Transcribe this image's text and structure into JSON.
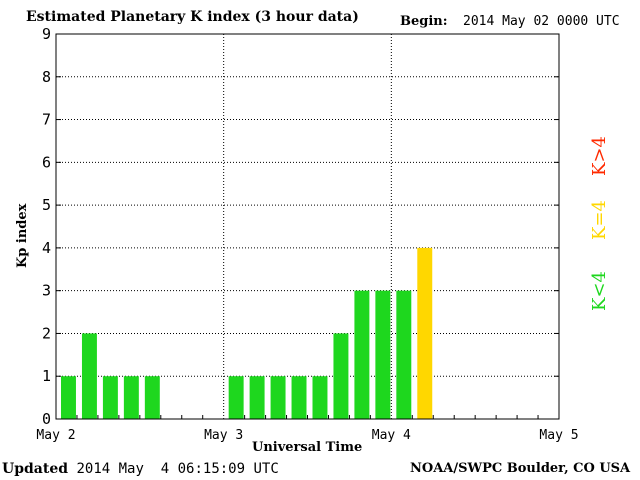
{
  "header": {
    "title": "Estimated Planetary K index (3 hour data)",
    "begin_label": "Begin:",
    "begin_value": "2014 May 02 0000 UTC"
  },
  "footer": {
    "updated_label": "Updated",
    "updated_value": "2014 May  4 06:15:09 UTC",
    "source": "NOAA/SWPC Boulder, CO USA"
  },
  "legend": {
    "high": {
      "label": "K>4",
      "color": "#ff2a00"
    },
    "mid": {
      "label": "K=4",
      "color": "#ffd700"
    },
    "low": {
      "label": "K<4",
      "color": "#1ed71e"
    }
  },
  "chart_data": {
    "type": "bar",
    "title": "Estimated Planetary K index (3 hour data)",
    "xlabel": "Universal Time",
    "ylabel": "Kp index",
    "ylim": [
      0,
      9
    ],
    "yticks": [
      "0",
      "1",
      "2",
      "3",
      "4",
      "5",
      "6",
      "7",
      "8",
      "9"
    ],
    "xticks": [
      "May 2",
      "May 3",
      "May 4",
      "May 5"
    ],
    "grid": true,
    "slots_per_day": 8,
    "values": [
      1,
      2,
      1,
      1,
      1,
      null,
      null,
      null,
      1,
      1,
      1,
      1,
      1,
      2,
      3,
      3,
      3,
      4
    ],
    "colors": {
      "below4": "#1ed71e",
      "equal4": "#ffd700",
      "above4": "#ff2a00"
    }
  }
}
